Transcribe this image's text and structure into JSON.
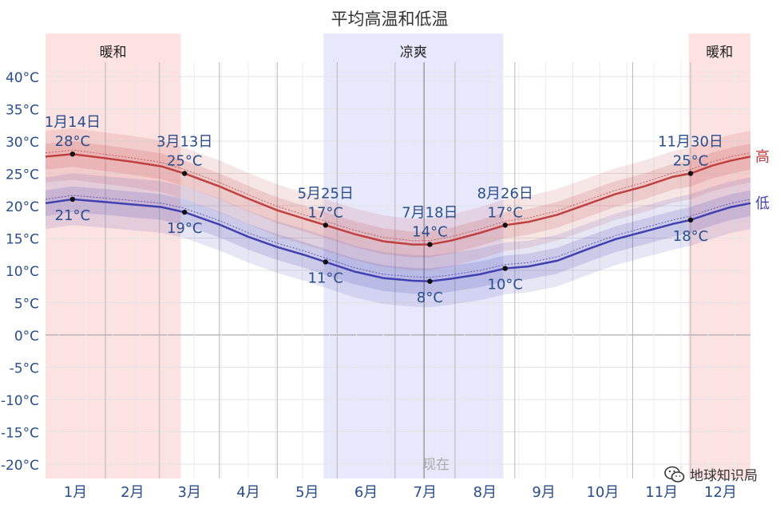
{
  "chart_data": {
    "type": "area",
    "title": "平均高温和低温",
    "ylim": [
      -22,
      42
    ],
    "yticks": [
      40,
      35,
      30,
      25,
      20,
      15,
      10,
      5,
      0,
      -5,
      -10,
      -15,
      -20
    ],
    "ytick_labels": [
      "40°C",
      "35°C",
      "30°C",
      "25°C",
      "20°C",
      "15°C",
      "10°C",
      "5°C",
      "0°C",
      "-5°C",
      "-10°C",
      "-15°C",
      "-20°C"
    ],
    "x_range_days": [
      0,
      365
    ],
    "month_labels": [
      "1月",
      "2月",
      "3月",
      "4月",
      "5月",
      "6月",
      "7月",
      "8月",
      "9月",
      "10月",
      "11月",
      "12月"
    ],
    "seasons": [
      {
        "label": "暖和",
        "start_day": 0,
        "end_day": 70,
        "color": "#fde2e2"
      },
      {
        "label": "凉爽",
        "start_day": 144,
        "end_day": 237,
        "color": "#e8e8fc"
      },
      {
        "label": "暖和",
        "start_day": 333,
        "end_day": 365,
        "color": "#fde2e2"
      }
    ],
    "now_label": "现在",
    "now_day": 196,
    "series": [
      {
        "name": "高",
        "color": "#c0403f",
        "x_days": [
          0,
          14,
          30,
          45,
          60,
          72,
          90,
          105,
          120,
          135,
          145,
          160,
          175,
          190,
          199,
          210,
          225,
          238,
          250,
          265,
          280,
          295,
          310,
          325,
          334,
          345,
          355,
          365
        ],
        "values": [
          27.6,
          28,
          27.4,
          26.8,
          26.1,
          25,
          23,
          21.1,
          19.3,
          17.9,
          17,
          15.6,
          14.5,
          14,
          14,
          14.6,
          15.8,
          17,
          17.5,
          18.6,
          20.2,
          21.8,
          23,
          24.5,
          25,
          26.2,
          27,
          27.6
        ]
      },
      {
        "name": "低",
        "color": "#4040b0",
        "x_days": [
          0,
          14,
          30,
          45,
          60,
          72,
          90,
          105,
          120,
          135,
          145,
          160,
          175,
          190,
          199,
          210,
          225,
          238,
          250,
          265,
          280,
          295,
          310,
          325,
          334,
          345,
          355,
          365
        ],
        "values": [
          20.4,
          21,
          20.6,
          20.2,
          19.8,
          19,
          17.1,
          15.2,
          13.6,
          12.3,
          11.3,
          9.8,
          8.8,
          8.4,
          8.3,
          8.7,
          9.4,
          10.3,
          10.6,
          11.5,
          13.2,
          14.8,
          16,
          17.2,
          17.8,
          18.9,
          19.8,
          20.4
        ]
      }
    ],
    "annotations": [
      {
        "day": 14,
        "value": 28,
        "series": "高",
        "date": "1月14日",
        "temp": "28°C"
      },
      {
        "day": 14,
        "value": 21,
        "series": "低",
        "temp": "21°C"
      },
      {
        "day": 72,
        "value": 25,
        "series": "高",
        "date": "3月13日",
        "temp": "25°C"
      },
      {
        "day": 72,
        "value": 19,
        "series": "低",
        "temp": "19°C"
      },
      {
        "day": 145,
        "value": 17,
        "series": "高",
        "date": "5月25日",
        "temp": "17°C"
      },
      {
        "day": 145,
        "value": 11.3,
        "series": "低",
        "temp": "11°C"
      },
      {
        "day": 199,
        "value": 14,
        "series": "高",
        "date": "7月18日",
        "temp": "14°C"
      },
      {
        "day": 199,
        "value": 8.3,
        "series": "低",
        "temp": "8°C"
      },
      {
        "day": 238,
        "value": 17,
        "series": "高",
        "date": "8月26日",
        "temp": "17°C"
      },
      {
        "day": 238,
        "value": 10.3,
        "series": "低",
        "temp": "10°C"
      },
      {
        "day": 334,
        "value": 25,
        "series": "高",
        "date": "11月30日",
        "temp": "25°C"
      },
      {
        "day": 334,
        "value": 17.8,
        "series": "低",
        "temp": "18°C"
      }
    ]
  },
  "watermark": {
    "text": "地球知识局",
    "icon": "wechat-icon"
  }
}
